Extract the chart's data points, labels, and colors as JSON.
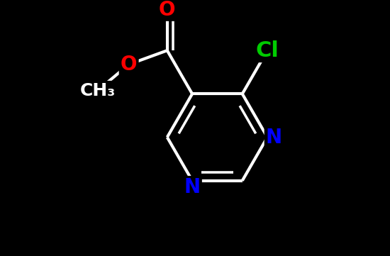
{
  "background_color": "#000000",
  "bond_color": "#ffffff",
  "bond_width": 3.0,
  "atom_colors": {
    "O": "#ff0000",
    "N": "#0000ff",
    "Cl": "#00cc00",
    "C": "#ffffff"
  },
  "font_size_Cl": 22,
  "font_size_ON": 20,
  "font_size_CH3": 18,
  "figsize": [
    5.5,
    3.61
  ],
  "dpi": 100
}
